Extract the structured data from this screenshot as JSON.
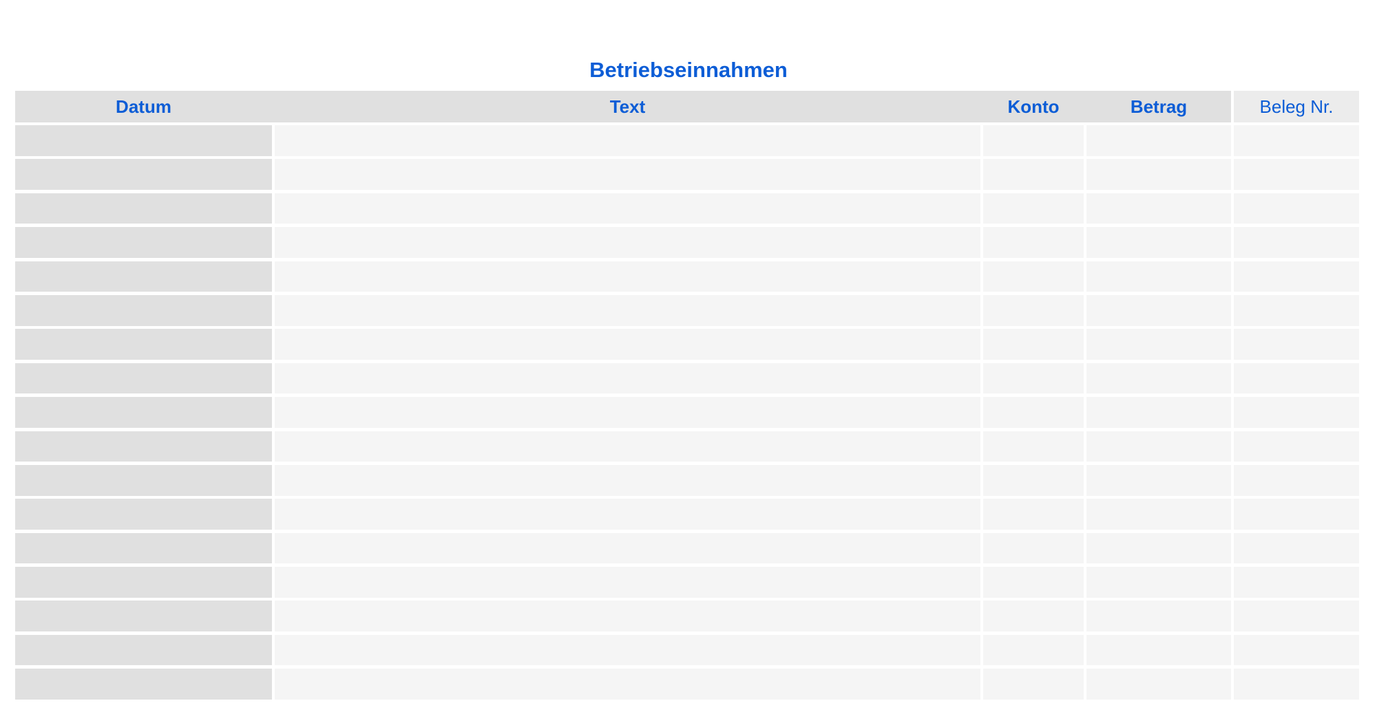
{
  "page": {
    "title": "Betriebseinnahmen"
  },
  "colors": {
    "accent_blue": "#0d5dd6",
    "header_fill": "#e0e0e0",
    "beleg_header_fill": "#ececec",
    "datum_column_fill": "#e0e0e0",
    "body_cell_fill": "#f5f5f5",
    "page_background": "#ffffff"
  },
  "table": {
    "columns": [
      {
        "id": "datum",
        "label": "Datum",
        "header_bold": true
      },
      {
        "id": "text",
        "label": "Text",
        "header_bold": true
      },
      {
        "id": "konto",
        "label": "Konto",
        "header_bold": true
      },
      {
        "id": "betrag",
        "label": "Betrag",
        "header_bold": true
      },
      {
        "id": "beleg",
        "label": "Beleg Nr.",
        "header_bold": false
      }
    ],
    "visible_row_count": 17,
    "rows_are_empty": true
  }
}
